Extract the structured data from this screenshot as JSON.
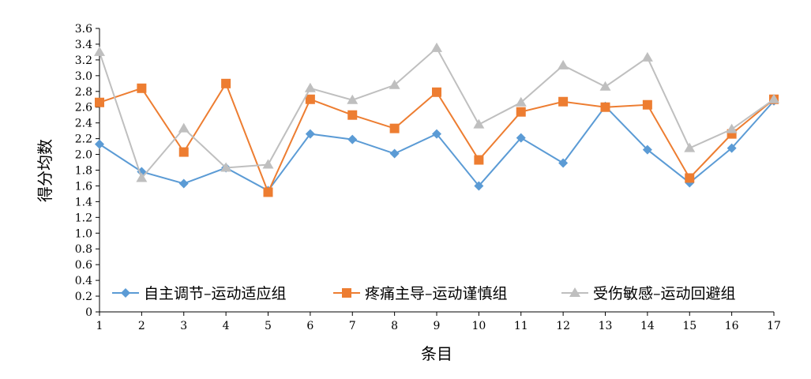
{
  "chart_data": {
    "type": "line",
    "xlabel": "条目",
    "ylabel": "得分均数",
    "x": [
      1,
      2,
      3,
      4,
      5,
      6,
      7,
      8,
      9,
      10,
      11,
      12,
      13,
      14,
      15,
      16,
      17
    ],
    "ylim": [
      0,
      3.6
    ],
    "ytick_step": 0.2,
    "grid": false,
    "legend_position": "bottom-inside",
    "series": [
      {
        "name": "自主调节–运动适应组",
        "color": "#5b9bd5",
        "marker": "diamond",
        "values": [
          2.13,
          1.78,
          1.63,
          1.83,
          1.54,
          2.26,
          2.19,
          2.01,
          2.26,
          1.6,
          2.21,
          1.89,
          2.61,
          2.06,
          1.64,
          2.08,
          2.68
        ]
      },
      {
        "name": "疼痛主导–运动谨慎组",
        "color": "#ed7d31",
        "marker": "square",
        "values": [
          2.66,
          2.84,
          2.03,
          2.9,
          1.52,
          2.7,
          2.5,
          2.33,
          2.79,
          1.93,
          2.54,
          2.67,
          2.6,
          2.63,
          1.7,
          2.26,
          2.7
        ]
      },
      {
        "name": "受伤敏感–运动回避组",
        "color": "#bfbfbf",
        "marker": "triangle",
        "values": [
          3.3,
          1.7,
          2.33,
          1.83,
          1.87,
          2.84,
          2.69,
          2.88,
          3.35,
          2.38,
          2.66,
          3.13,
          2.86,
          3.23,
          2.08,
          2.32,
          2.7
        ]
      }
    ]
  }
}
